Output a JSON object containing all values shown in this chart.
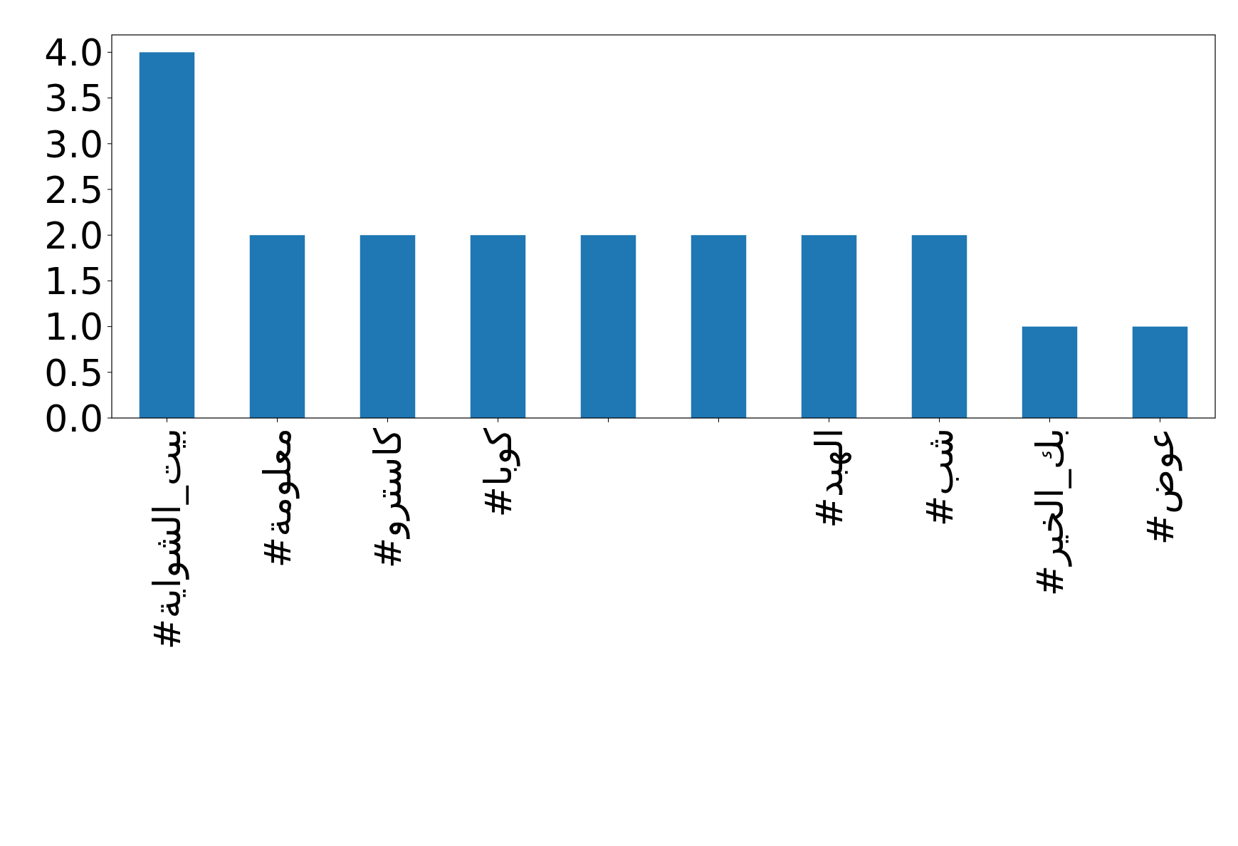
{
  "chart_data": {
    "type": "bar",
    "categories": [
      "#بيت_الشواية",
      "#معلومة",
      "#كاسترو",
      "#كوبا",
      null,
      null,
      "#الهبد",
      "#شب",
      "#بك_الخير",
      "#عوض"
    ],
    "values": [
      4,
      2,
      2,
      2,
      2,
      2,
      2,
      2,
      1,
      1
    ],
    "color": "#1f77b4",
    "ylim": [
      0,
      4.19
    ],
    "yticks": [
      {
        "value": 0,
        "label": "0.0"
      },
      {
        "value": 0.5,
        "label": "0.5"
      },
      {
        "value": 1,
        "label": "1.0"
      },
      {
        "value": 1.5,
        "label": "1.5"
      },
      {
        "value": 2,
        "label": "2.0"
      },
      {
        "value": 2.5,
        "label": "2.5"
      },
      {
        "value": 3,
        "label": "3.0"
      },
      {
        "value": 3.5,
        "label": "3.5"
      },
      {
        "value": 4,
        "label": "4.0"
      }
    ],
    "grid": false
  }
}
